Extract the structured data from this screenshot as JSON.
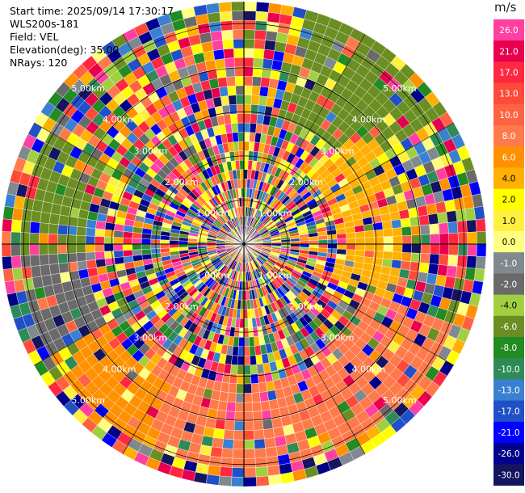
{
  "info": {
    "start_time": "Start time: 2025/09/14 17:30:17",
    "site": "WLS200s-181",
    "field": "Field: VEL",
    "elevation": "Elevation(deg): 35.00",
    "nrays": "NRays: 120"
  },
  "colorbar": {
    "unit": "m/s",
    "labels": [
      "26.0",
      "21.0",
      "17.0",
      "13.0",
      "10.0",
      "8.0",
      "6.0",
      "4.0",
      "2.0",
      "1.0",
      "0.0",
      "-1.0",
      "-2.0",
      "-4.0",
      "-6.0",
      "-8.0",
      "-10.0",
      "-13.0",
      "-17.0",
      "-21.0",
      "-26.0",
      "-30.0"
    ],
    "colors": [
      "#ff40a0",
      "#e8004e",
      "#ff2840",
      "#ff4a3a",
      "#ff6242",
      "#ff7a4a",
      "#ff9000",
      "#ffb000",
      "#ffff00",
      "#fff040",
      "#ffff80",
      "#808890",
      "#6a6a6a",
      "#a0d040",
      "#6b8e23",
      "#228b22",
      "#2e8b57",
      "#3a80d0",
      "#2050c8",
      "#0000ff",
      "#00008b",
      "#141460"
    ]
  },
  "chart_data": {
    "type": "heatmap",
    "title": "",
    "projection": "polar (PPI)",
    "field": "VEL",
    "units": "m/s",
    "nrays": 120,
    "range_rings_km": [
      1,
      2,
      3,
      4,
      5
    ],
    "ring_labels": [
      "1.00km",
      "2.00km",
      "3.00km",
      "4.00km",
      "5.00km"
    ],
    "color_scale_m_s": [
      26.0,
      21.0,
      17.0,
      13.0,
      10.0,
      8.0,
      6.0,
      4.0,
      2.0,
      1.0,
      0.0,
      -1.0,
      -2.0,
      -4.0,
      -6.0,
      -8.0,
      -10.0,
      -13.0,
      -17.0,
      -21.0,
      -26.0,
      -30.0
    ],
    "coherent_regions": [
      {
        "azimuth_deg": [
          15,
          55
        ],
        "range_km": [
          3.0,
          5.5
        ],
        "value_m_s": -6.0
      },
      {
        "azimuth_deg": [
          45,
          75
        ],
        "range_km": [
          2.2,
          3.8
        ],
        "value_m_s": 4.0
      },
      {
        "azimuth_deg": [
          75,
          110
        ],
        "range_km": [
          2.2,
          3.5
        ],
        "value_m_s": 4.0
      },
      {
        "azimuth_deg": [
          110,
          150
        ],
        "range_km": [
          3.0,
          5.0
        ],
        "value_m_s": 8.0
      },
      {
        "azimuth_deg": [
          150,
          215
        ],
        "range_km": [
          3.2,
          5.0
        ],
        "value_m_s": 8.0
      },
      {
        "azimuth_deg": [
          205,
          240
        ],
        "range_km": [
          3.5,
          5.0
        ],
        "value_m_s": 6.0
      },
      {
        "azimuth_deg": [
          240,
          265
        ],
        "range_km": [
          3.5,
          5.0
        ],
        "value_m_s": -2.0
      },
      {
        "azimuth_deg": [
          265,
          300
        ],
        "range_km": [
          3.5,
          5.0
        ],
        "value_m_s": -6.0
      }
    ]
  }
}
